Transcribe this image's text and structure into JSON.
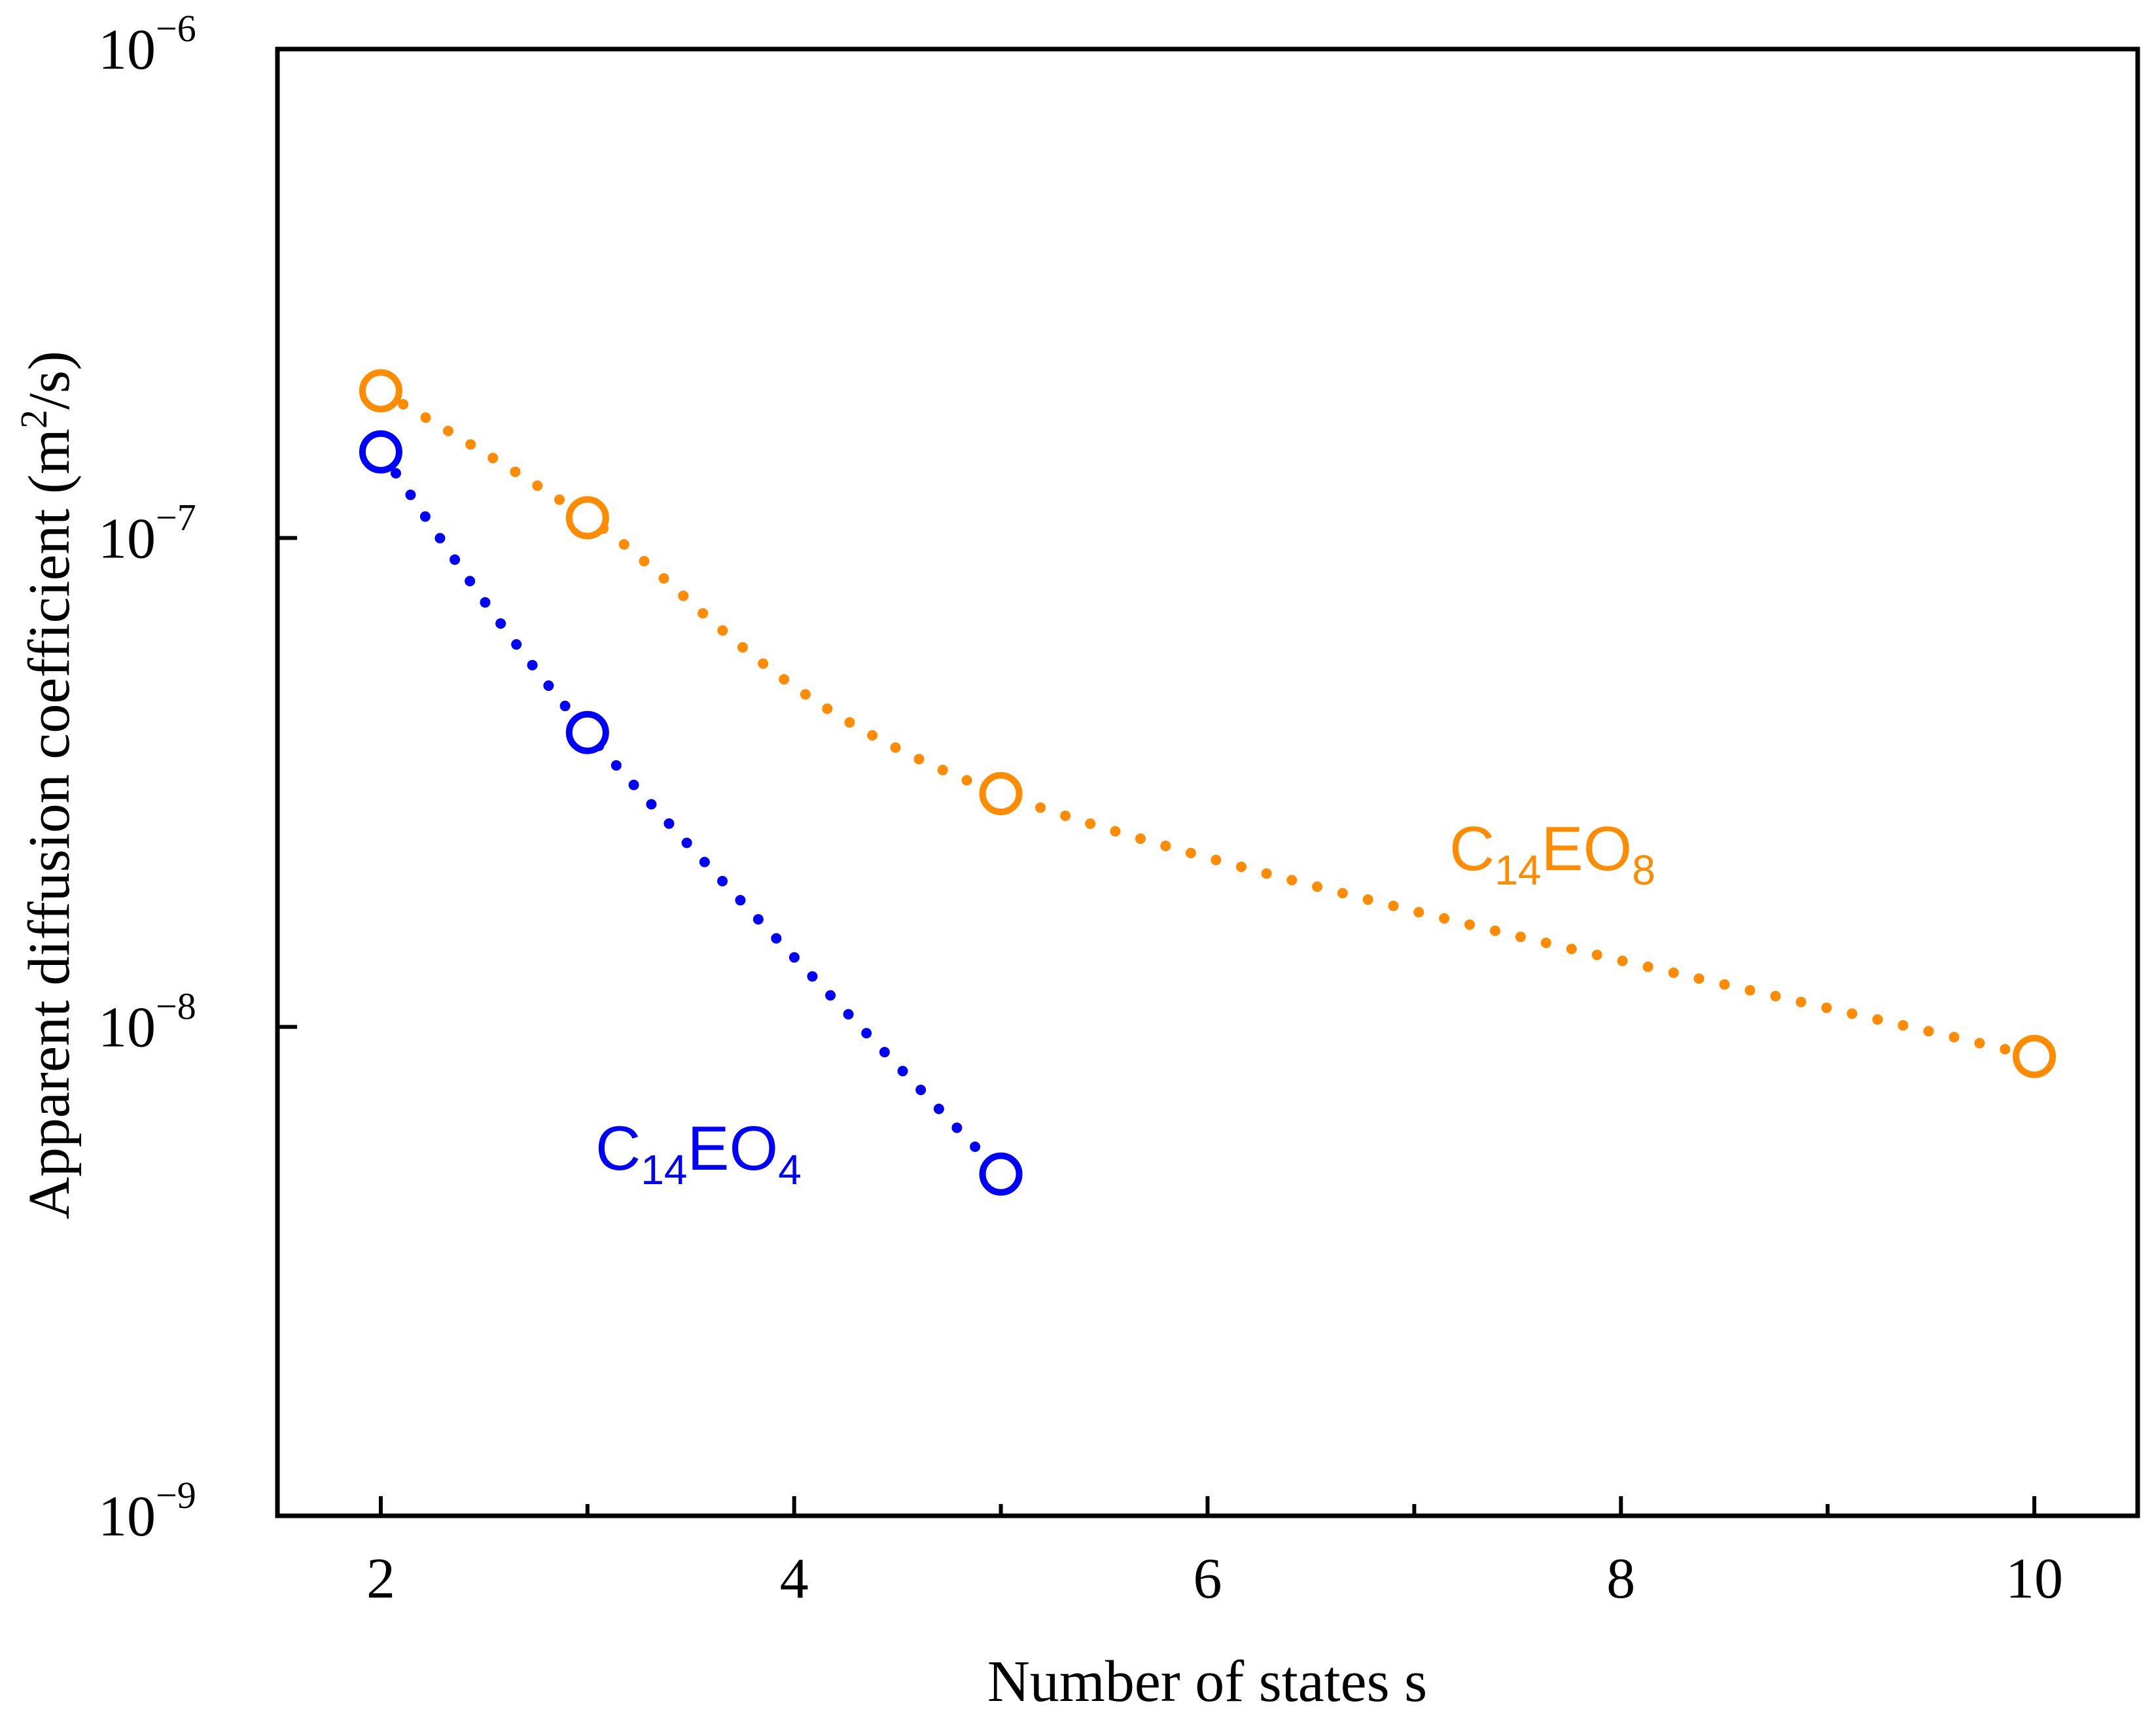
{
  "chart_data": {
    "type": "scatter",
    "title": "",
    "xlabel": "Number of states s",
    "ylabel": "Apparent diffusion coefficient (m",
    "ylabel_sup": "2",
    "ylabel_tail": "/s)",
    "xlim": [
      1.5,
      10.5
    ],
    "x_major_ticks": [
      2,
      4,
      6,
      8,
      10
    ],
    "x_minor_ticks": [
      3,
      5,
      7,
      9
    ],
    "x_tick_labels": [
      "2",
      "4",
      "6",
      "8",
      "10"
    ],
    "ylim": [
      1e-09,
      1e-06
    ],
    "yscale": "log",
    "y_ticks": [
      1e-09,
      1e-08,
      1e-07,
      1e-06
    ],
    "y_tick_labels": [
      {
        "base": "10",
        "exp": "−9"
      },
      {
        "base": "10",
        "exp": "−8"
      },
      {
        "base": "10",
        "exp": "−7"
      },
      {
        "base": "10",
        "exp": "−6"
      }
    ],
    "grid": false,
    "series": [
      {
        "name": "C14EO8",
        "label_main": "C",
        "label_sub1": "14",
        "label_mid": "EO",
        "label_sub2": "8",
        "color": "#FF8C00",
        "marker": "open-circle",
        "line": "dotted",
        "x": [
          2,
          3,
          5,
          10
        ],
        "y": [
          2e-07,
          1.1e-07,
          3e-08,
          8.7e-09
        ]
      },
      {
        "name": "C14EO4",
        "label_main": "C",
        "label_sub1": "14",
        "label_mid": "EO",
        "label_sub2": "4",
        "color": "#0000FF",
        "marker": "open-circle",
        "line": "dotted",
        "x": [
          2,
          3,
          5
        ],
        "y": [
          1.5e-07,
          4e-08,
          5e-09
        ]
      }
    ]
  }
}
